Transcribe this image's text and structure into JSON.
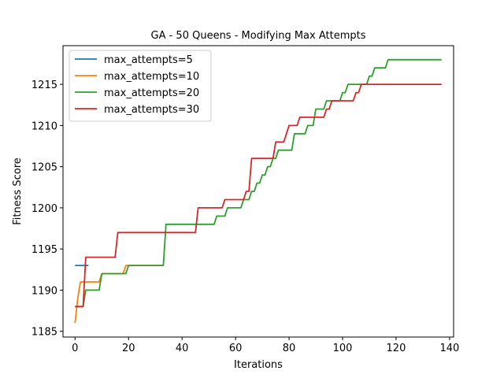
{
  "chart_data": {
    "type": "line",
    "title": "GA - 50 Queens - Modifying Max Attempts",
    "xlabel": "Iterations",
    "ylabel": "Fitness Score",
    "xlim": [
      -4.5,
      141.5
    ],
    "ylim": [
      1184.3,
      1219.7
    ],
    "x_ticks": [
      0,
      20,
      40,
      60,
      80,
      100,
      120,
      140
    ],
    "y_ticks": [
      1185,
      1190,
      1195,
      1200,
      1205,
      1210,
      1215
    ],
    "grid": false,
    "legend_position": "top-left",
    "series": [
      {
        "name": "max_attempts=5",
        "color": "#1f77b4",
        "points": [
          [
            0,
            1193
          ],
          [
            5,
            1193
          ]
        ]
      },
      {
        "name": "max_attempts=10",
        "color": "#ff7f0e",
        "points": [
          [
            0,
            1186
          ],
          [
            1,
            1189
          ],
          [
            2,
            1191
          ],
          [
            9,
            1191
          ],
          [
            10,
            1192
          ],
          [
            18,
            1192
          ],
          [
            19,
            1193
          ],
          [
            33,
            1193
          ]
        ]
      },
      {
        "name": "max_attempts=20",
        "color": "#2ca02c",
        "points": [
          [
            0,
            1188
          ],
          [
            3,
            1188
          ],
          [
            4,
            1190
          ],
          [
            9,
            1190
          ],
          [
            10,
            1192
          ],
          [
            19,
            1192
          ],
          [
            20,
            1193
          ],
          [
            33,
            1193
          ],
          [
            34,
            1198
          ],
          [
            52,
            1198
          ],
          [
            53,
            1199
          ],
          [
            56,
            1199
          ],
          [
            57,
            1200
          ],
          [
            62,
            1200
          ],
          [
            63,
            1201
          ],
          [
            65,
            1201
          ],
          [
            66,
            1202
          ],
          [
            67,
            1202
          ],
          [
            68,
            1203
          ],
          [
            69,
            1203
          ],
          [
            70,
            1204
          ],
          [
            71,
            1204
          ],
          [
            72,
            1205
          ],
          [
            73,
            1205
          ],
          [
            74,
            1206
          ],
          [
            75,
            1206
          ],
          [
            76,
            1207
          ],
          [
            81,
            1207
          ],
          [
            82,
            1209
          ],
          [
            86,
            1209
          ],
          [
            87,
            1210
          ],
          [
            89,
            1210
          ],
          [
            90,
            1212
          ],
          [
            93,
            1212
          ],
          [
            94,
            1213
          ],
          [
            99,
            1213
          ],
          [
            100,
            1214
          ],
          [
            101,
            1214
          ],
          [
            102,
            1215
          ],
          [
            109,
            1215
          ],
          [
            110,
            1216
          ],
          [
            111,
            1216
          ],
          [
            112,
            1217
          ],
          [
            116,
            1217
          ],
          [
            117,
            1218
          ],
          [
            137,
            1218
          ]
        ]
      },
      {
        "name": "max_attempts=30",
        "color": "#d62728",
        "points": [
          [
            0,
            1188
          ],
          [
            3,
            1188
          ],
          [
            4,
            1194
          ],
          [
            15,
            1194
          ],
          [
            16,
            1197
          ],
          [
            45,
            1197
          ],
          [
            46,
            1200
          ],
          [
            55,
            1200
          ],
          [
            56,
            1201
          ],
          [
            63,
            1201
          ],
          [
            64,
            1202
          ],
          [
            65,
            1202
          ],
          [
            66,
            1206
          ],
          [
            74,
            1206
          ],
          [
            75,
            1208
          ],
          [
            78,
            1208
          ],
          [
            80,
            1210
          ],
          [
            83,
            1210
          ],
          [
            84,
            1211
          ],
          [
            93,
            1211
          ],
          [
            94,
            1212
          ],
          [
            95,
            1212
          ],
          [
            96,
            1213
          ],
          [
            104,
            1213
          ],
          [
            105,
            1214
          ],
          [
            106,
            1214
          ],
          [
            107,
            1215
          ],
          [
            137,
            1215
          ]
        ]
      }
    ]
  }
}
